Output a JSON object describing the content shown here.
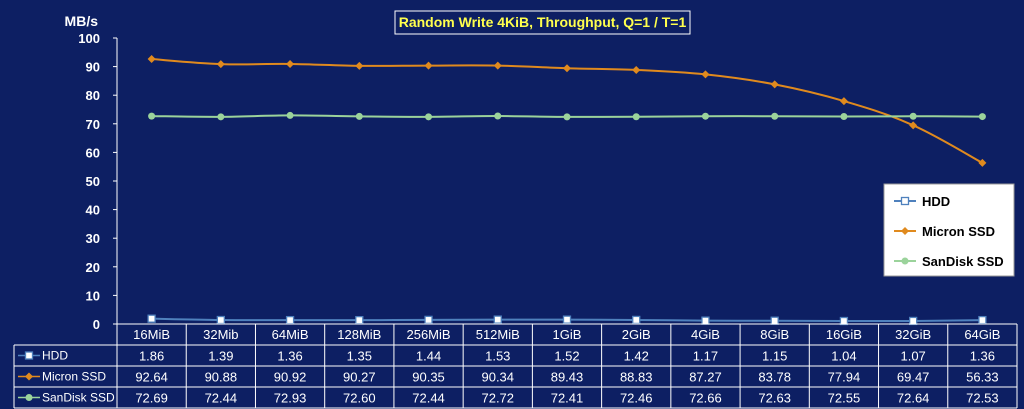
{
  "chart_data": {
    "type": "line",
    "title": "Random Write 4KiB, Throughput, Q=1 / T=1",
    "ylabel": "MB/s",
    "xlabel": "",
    "ylim": [
      0,
      100
    ],
    "yticks": [
      "0",
      "10",
      "20",
      "30",
      "40",
      "50",
      "60",
      "70",
      "80",
      "90",
      "100"
    ],
    "grid": false,
    "legend_position": "right",
    "categories": [
      "16MiB",
      "32Mib",
      "64MiB",
      "128MiB",
      "256MiB",
      "512MiB",
      "1GiB",
      "2GiB",
      "4GiB",
      "8GiB",
      "16GiB",
      "32GiB",
      "64GiB"
    ],
    "series": [
      {
        "name": "HDD",
        "color": "#4f81bd",
        "marker": "square",
        "values": [
          1.86,
          1.39,
          1.36,
          1.35,
          1.44,
          1.53,
          1.52,
          1.42,
          1.17,
          1.15,
          1.04,
          1.07,
          1.36
        ],
        "display": [
          "1.86",
          "1.39",
          "1.36",
          "1.35",
          "1.44",
          "1.53",
          "1.52",
          "1.42",
          "1.17",
          "1.15",
          "1.04",
          "1.07",
          "1.36"
        ]
      },
      {
        "name": "Micron SSD",
        "color": "#e08a1e",
        "marker": "diamond",
        "values": [
          92.64,
          90.88,
          90.92,
          90.27,
          90.35,
          90.34,
          89.43,
          88.83,
          87.27,
          83.78,
          77.94,
          69.47,
          56.33
        ],
        "display": [
          "92.64",
          "90.88",
          "90.92",
          "90.27",
          "90.35",
          "90.34",
          "89.43",
          "88.83",
          "87.27",
          "83.78",
          "77.94",
          "69.47",
          "56.33"
        ]
      },
      {
        "name": "SanDisk SSD",
        "color": "#9bd39b",
        "marker": "circle",
        "values": [
          72.69,
          72.44,
          72.93,
          72.6,
          72.44,
          72.72,
          72.41,
          72.46,
          72.66,
          72.63,
          72.55,
          72.64,
          72.53
        ],
        "display": [
          "72.69",
          "72.44",
          "72.93",
          "72.60",
          "72.44",
          "72.72",
          "72.41",
          "72.46",
          "72.66",
          "72.63",
          "72.55",
          "72.64",
          "72.53"
        ]
      }
    ]
  }
}
